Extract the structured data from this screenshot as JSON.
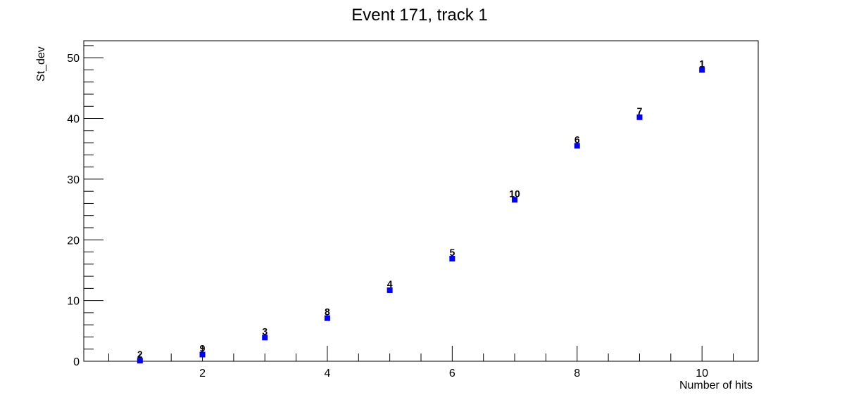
{
  "chart_data": {
    "type": "scatter",
    "title": "Event 171, track 1",
    "xlabel": "Number of hits",
    "ylabel": "St_dev",
    "xlim": [
      0.1,
      10.9
    ],
    "ylim": [
      0,
      52.8
    ],
    "xticks": [
      2,
      4,
      6,
      8,
      10
    ],
    "yticks": [
      0,
      10,
      20,
      30,
      40,
      50
    ],
    "grid": false,
    "marker_color": "#0000ff",
    "points": [
      {
        "x": 1,
        "y": 0.1,
        "label": "2"
      },
      {
        "x": 2,
        "y": 1.1,
        "label": "9"
      },
      {
        "x": 3,
        "y": 3.9,
        "label": "3"
      },
      {
        "x": 4,
        "y": 7.1,
        "label": "8"
      },
      {
        "x": 5,
        "y": 11.7,
        "label": "4"
      },
      {
        "x": 6,
        "y": 16.9,
        "label": "5"
      },
      {
        "x": 7,
        "y": 26.6,
        "label": "10"
      },
      {
        "x": 8,
        "y": 35.5,
        "label": "6"
      },
      {
        "x": 9,
        "y": 40.2,
        "label": "7"
      },
      {
        "x": 10,
        "y": 48.0,
        "label": "1"
      }
    ]
  }
}
